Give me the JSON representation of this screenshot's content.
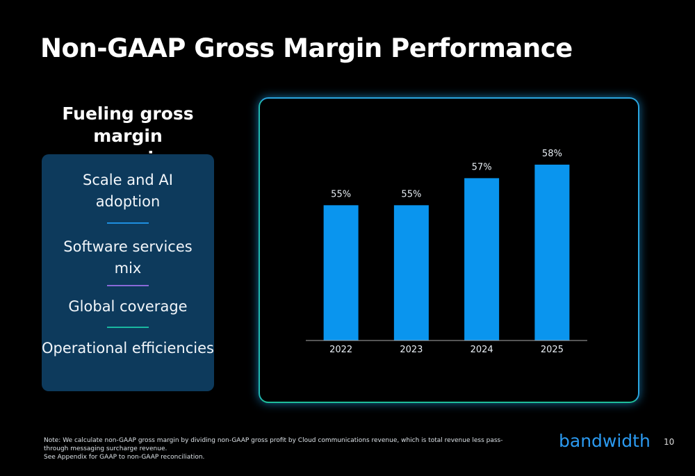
{
  "title": "Non-GAAP Gross Margin Performance",
  "sidebar": {
    "heading": "Fueling gross margin expansion",
    "items": [
      "Scale and AI adoption",
      "Software services mix",
      "Global coverage",
      "Operational efficiencies"
    ]
  },
  "chart_data": {
    "type": "bar",
    "categories": [
      "2022",
      "2023",
      "2024",
      "2025"
    ],
    "values": [
      55,
      55,
      57,
      58
    ],
    "value_labels": [
      "55%",
      "55%",
      "57%",
      "58%"
    ],
    "color": "#0a95ee",
    "ylim": [
      45,
      60
    ]
  },
  "footnote": [
    "Note: We calculate non-GAAP gross margin by dividing non-GAAP gross profit by Cloud communications revenue, which is total revenue less pass-through messaging surcharge revenue.",
    "See Appendix for GAAP to non-GAAP reconciliation."
  ],
  "logo": "bandwidth",
  "page_number": "10"
}
